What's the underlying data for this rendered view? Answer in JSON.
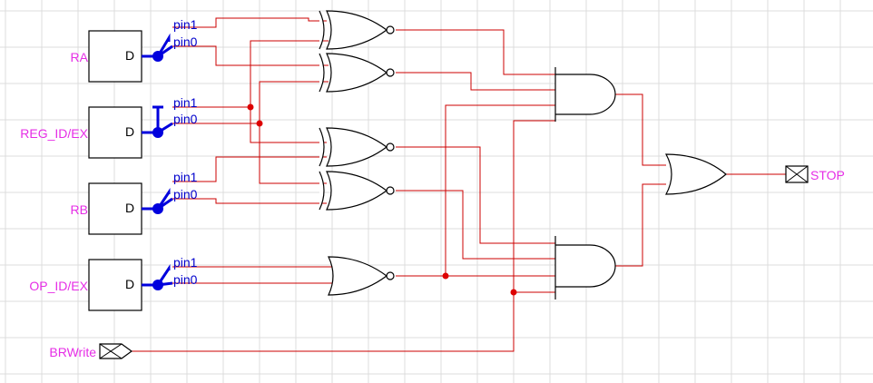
{
  "colors": {
    "wire": "#cc0000",
    "gate": "#000000",
    "pin": "#0000dd",
    "label": "#e62ee6",
    "grid": "#dcdcdc",
    "junction": "#dd0000"
  },
  "registers": [
    {
      "name": "RA",
      "port": "D",
      "pin1": "pin1",
      "pin0": "pin0"
    },
    {
      "name": "REG_ID/EX",
      "port": "D",
      "pin1": "pin1",
      "pin0": "pin0"
    },
    {
      "name": "RB",
      "port": "D",
      "pin1": "pin1",
      "pin0": "pin0"
    },
    {
      "name": "OP_ID/EX",
      "port": "D",
      "pin1": "pin1",
      "pin0": "pin0"
    }
  ],
  "inputs": {
    "brwrite": "BRWrite"
  },
  "outputs": {
    "stop": "STOP"
  },
  "gates": {
    "xnor_count": 4,
    "nor_count": 1,
    "and_count": 2,
    "or_count": 1
  }
}
